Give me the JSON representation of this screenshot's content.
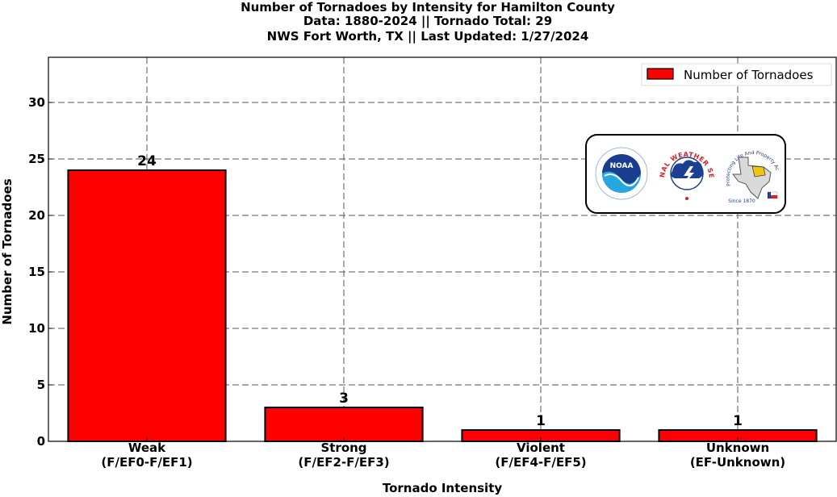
{
  "chart_data": {
    "type": "bar",
    "title": "Number of Tornadoes by Intensity for Hamilton County",
    "subtitle_lines": [
      "Data: 1880-2024 || Tornado Total: 29",
      "NWS Fort Worth, TX || Last Updated: 1/27/2024"
    ],
    "categories": [
      [
        "Weak",
        "(F/EF0-F/EF1)"
      ],
      [
        "Strong",
        "(F/EF2-F/EF3)"
      ],
      [
        "Violent",
        "(F/EF4-F/EF5)"
      ],
      [
        "Unknown",
        "(EF-Unknown)"
      ]
    ],
    "series": [
      {
        "name": "Number of Tornadoes",
        "values": [
          24,
          3,
          1,
          1
        ],
        "color": "#ff0000"
      }
    ],
    "data_labels": [
      "24",
      "3",
      "1",
      "1"
    ],
    "xlabel": "Tornado Intensity",
    "ylabel": "Number of Tornadoes",
    "ylim": [
      0,
      34
    ],
    "yticks": [
      0,
      5,
      10,
      15,
      20,
      25,
      30
    ],
    "grid": true,
    "legend_position": "top-right"
  },
  "logos": {
    "noaa_text": "NOAA",
    "nws_text": "NATIONAL WEATHER SERVICE",
    "nws_colors": [
      "#1c3f94",
      "#d61f26"
    ],
    "ftw_text": "Protecting Life And Property Across North Texas",
    "ftw_since": "Since 1870"
  }
}
